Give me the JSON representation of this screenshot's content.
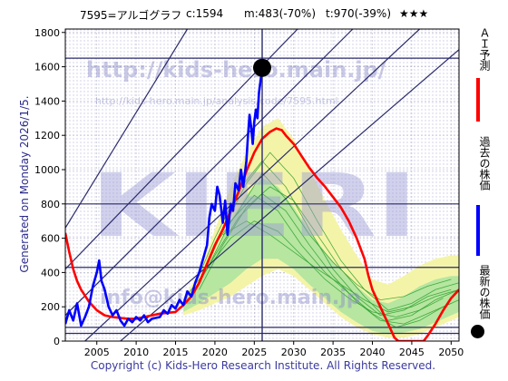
{
  "header": {
    "code": "7595=アルゴグラフ",
    "current": "c:1594",
    "min": "m:483(-70%)",
    "target": "t:970(-39%)",
    "stars": "★★★"
  },
  "side_label": "Generated on Monday 2026/1/5.",
  "copyright": "Copyright (c) Kids-Hero Research Institute. All Rights Reserved.",
  "watermarks": {
    "url_big": "http://kids-hero.main.jp/",
    "url_small": "http://kids-hero.main.jp/analysis/code/7595.html",
    "brand": "KIERI",
    "email": "info@kids-hero.main.jp"
  },
  "legend": {
    "ai": "ＡＩ予測",
    "past": "過去の株価",
    "latest": "最新の株価"
  },
  "colors": {
    "ai": "#ff0000",
    "past": "#0000ff",
    "latest": "#000000",
    "trend": "#2b2b6b",
    "band_outer": "#f4f4a8",
    "band_inner": "#b6e6a0",
    "sim": "#2c9e2c"
  },
  "chart_data": {
    "type": "line",
    "xlim": [
      2001,
      2051
    ],
    "ylim": [
      0,
      1820
    ],
    "x_ticks": [
      2005,
      2010,
      2015,
      2020,
      2025,
      2030,
      2035,
      2040,
      2045,
      2050
    ],
    "y_ticks": [
      0,
      200,
      400,
      600,
      800,
      1000,
      1200,
      1400,
      1600,
      1800
    ],
    "grid": true,
    "current_point": {
      "x": 2026,
      "y": 1594
    },
    "current_vline_x": 2026,
    "horizontal_levels": [
      1650,
      800,
      430,
      80,
      45
    ],
    "series": [
      {
        "key": "past",
        "points": [
          [
            2001,
            100
          ],
          [
            2001.5,
            180
          ],
          [
            2002,
            120
          ],
          [
            2002.5,
            220
          ],
          [
            2003,
            90
          ],
          [
            2003.5,
            140
          ],
          [
            2004,
            200
          ],
          [
            2004.5,
            320
          ],
          [
            2005,
            400
          ],
          [
            2005.3,
            470
          ],
          [
            2005.6,
            350
          ],
          [
            2006,
            300
          ],
          [
            2006.5,
            200
          ],
          [
            2007,
            150
          ],
          [
            2007.5,
            180
          ],
          [
            2008,
            120
          ],
          [
            2008.5,
            90
          ],
          [
            2009,
            130
          ],
          [
            2009.5,
            110
          ],
          [
            2010,
            140
          ],
          [
            2010.5,
            120
          ],
          [
            2011,
            150
          ],
          [
            2011.5,
            110
          ],
          [
            2012,
            130
          ],
          [
            2013,
            140
          ],
          [
            2013.5,
            180
          ],
          [
            2014,
            160
          ],
          [
            2014.5,
            210
          ],
          [
            2015,
            190
          ],
          [
            2015.5,
            240
          ],
          [
            2016,
            210
          ],
          [
            2016.5,
            290
          ],
          [
            2017,
            260
          ],
          [
            2017.5,
            340
          ],
          [
            2018,
            400
          ],
          [
            2018.5,
            480
          ],
          [
            2019,
            560
          ],
          [
            2019.3,
            720
          ],
          [
            2019.6,
            800
          ],
          [
            2020,
            760
          ],
          [
            2020.3,
            900
          ],
          [
            2020.6,
            850
          ],
          [
            2021,
            690
          ],
          [
            2021.3,
            820
          ],
          [
            2021.6,
            620
          ],
          [
            2022,
            800
          ],
          [
            2022.3,
            760
          ],
          [
            2022.6,
            920
          ],
          [
            2023,
            880
          ],
          [
            2023.3,
            1000
          ],
          [
            2023.6,
            900
          ],
          [
            2024,
            1050
          ],
          [
            2024.2,
            1200
          ],
          [
            2024.4,
            1320
          ],
          [
            2024.6,
            1250
          ],
          [
            2024.8,
            1150
          ],
          [
            2025,
            1280
          ],
          [
            2025.2,
            1350
          ],
          [
            2025.4,
            1300
          ],
          [
            2025.6,
            1450
          ],
          [
            2025.8,
            1520
          ],
          [
            2026,
            1594
          ]
        ]
      },
      {
        "key": "ai",
        "points": [
          [
            2001,
            630
          ],
          [
            2001.5,
            520
          ],
          [
            2002,
            420
          ],
          [
            2002.5,
            350
          ],
          [
            2003,
            300
          ],
          [
            2004,
            230
          ],
          [
            2005,
            180
          ],
          [
            2006,
            150
          ],
          [
            2007,
            140
          ],
          [
            2008,
            135
          ],
          [
            2009,
            130
          ],
          [
            2010,
            130
          ],
          [
            2011,
            140
          ],
          [
            2012,
            150
          ],
          [
            2013,
            160
          ],
          [
            2014,
            165
          ],
          [
            2015,
            170
          ],
          [
            2016,
            210
          ],
          [
            2017,
            260
          ],
          [
            2018,
            340
          ],
          [
            2019,
            450
          ],
          [
            2020,
            560
          ],
          [
            2021,
            650
          ],
          [
            2022,
            760
          ],
          [
            2023,
            870
          ],
          [
            2024,
            990
          ],
          [
            2025,
            1100
          ],
          [
            2026,
            1180
          ],
          [
            2027,
            1220
          ],
          [
            2027.8,
            1240
          ],
          [
            2028.5,
            1230
          ],
          [
            2029,
            1200
          ],
          [
            2030,
            1150
          ],
          [
            2031,
            1080
          ],
          [
            2032,
            1010
          ],
          [
            2033,
            950
          ],
          [
            2034,
            900
          ],
          [
            2035,
            840
          ],
          [
            2036,
            780
          ],
          [
            2037,
            700
          ],
          [
            2038,
            600
          ],
          [
            2039,
            480
          ],
          [
            2039.5,
            380
          ],
          [
            2040,
            300
          ],
          [
            2041,
            200
          ],
          [
            2042,
            100
          ],
          [
            2042.8,
            20
          ],
          [
            2043.3,
            0
          ],
          [
            2046.5,
            0
          ],
          [
            2047,
            30
          ],
          [
            2048,
            100
          ],
          [
            2049,
            180
          ],
          [
            2050,
            250
          ],
          [
            2051,
            300
          ]
        ]
      }
    ],
    "band_outer": {
      "x": [
        2016,
        2018,
        2020,
        2022,
        2024,
        2026,
        2028,
        2030,
        2032,
        2034,
        2036,
        2038,
        2040,
        2042,
        2044,
        2046,
        2048,
        2050,
        2051
      ],
      "upper": [
        250,
        400,
        650,
        900,
        1100,
        1250,
        1300,
        1180,
        1000,
        820,
        650,
        500,
        360,
        330,
        380,
        440,
        480,
        500,
        500
      ],
      "lower": [
        150,
        180,
        220,
        260,
        320,
        380,
        420,
        380,
        300,
        220,
        140,
        80,
        40,
        20,
        20,
        40,
        80,
        120,
        140
      ]
    },
    "band_inner": {
      "x": [
        2016,
        2018,
        2020,
        2022,
        2024,
        2026,
        2028,
        2030,
        2032,
        2034,
        2036,
        2038,
        2040,
        2042,
        2044,
        2046,
        2048,
        2050,
        2051
      ],
      "upper": [
        220,
        330,
        520,
        700,
        850,
        950,
        900,
        780,
        640,
        520,
        410,
        320,
        240,
        220,
        260,
        320,
        360,
        380,
        380
      ],
      "lower": [
        170,
        220,
        280,
        340,
        420,
        480,
        480,
        420,
        330,
        250,
        170,
        110,
        60,
        40,
        50,
        70,
        110,
        150,
        170
      ]
    },
    "sim_lines": [
      [
        [
          2017,
          280
        ],
        [
          2020,
          600
        ],
        [
          2023,
          880
        ],
        [
          2026,
          1050
        ],
        [
          2029,
          900
        ],
        [
          2032,
          650
        ],
        [
          2035,
          420
        ],
        [
          2038,
          260
        ],
        [
          2041,
          150
        ],
        [
          2044,
          180
        ],
        [
          2047,
          260
        ],
        [
          2050,
          300
        ]
      ],
      [
        [
          2018,
          330
        ],
        [
          2021,
          650
        ],
        [
          2024,
          920
        ],
        [
          2027,
          1100
        ],
        [
          2030,
          950
        ],
        [
          2033,
          700
        ],
        [
          2036,
          470
        ],
        [
          2039,
          300
        ],
        [
          2042,
          180
        ],
        [
          2045,
          220
        ],
        [
          2048,
          300
        ],
        [
          2051,
          340
        ]
      ],
      [
        [
          2017,
          260
        ],
        [
          2020,
          500
        ],
        [
          2023,
          720
        ],
        [
          2026,
          860
        ],
        [
          2029,
          760
        ],
        [
          2032,
          560
        ],
        [
          2035,
          380
        ],
        [
          2038,
          230
        ],
        [
          2041,
          120
        ],
        [
          2044,
          100
        ],
        [
          2047,
          160
        ],
        [
          2050,
          220
        ]
      ],
      [
        [
          2018,
          300
        ],
        [
          2021,
          560
        ],
        [
          2024,
          780
        ],
        [
          2027,
          900
        ],
        [
          2030,
          820
        ],
        [
          2033,
          620
        ],
        [
          2036,
          420
        ],
        [
          2039,
          260
        ],
        [
          2042,
          120
        ],
        [
          2045,
          150
        ],
        [
          2048,
          240
        ],
        [
          2051,
          300
        ]
      ],
      [
        [
          2019,
          420
        ],
        [
          2022,
          700
        ],
        [
          2025,
          850
        ],
        [
          2028,
          760
        ],
        [
          2031,
          560
        ],
        [
          2034,
          400
        ],
        [
          2037,
          280
        ],
        [
          2040,
          160
        ],
        [
          2043,
          80
        ],
        [
          2046,
          120
        ],
        [
          2049,
          200
        ],
        [
          2051,
          240
        ]
      ],
      [
        [
          2016,
          240
        ],
        [
          2019,
          420
        ],
        [
          2022,
          600
        ],
        [
          2025,
          700
        ],
        [
          2028,
          640
        ],
        [
          2031,
          500
        ],
        [
          2034,
          360
        ],
        [
          2037,
          250
        ],
        [
          2040,
          170
        ],
        [
          2043,
          140
        ],
        [
          2046,
          180
        ],
        [
          2049,
          250
        ]
      ],
      [
        [
          2020,
          560
        ],
        [
          2023,
          760
        ],
        [
          2026,
          980
        ],
        [
          2029,
          830
        ],
        [
          2032,
          620
        ],
        [
          2035,
          460
        ],
        [
          2038,
          330
        ],
        [
          2041,
          240
        ],
        [
          2044,
          260
        ],
        [
          2047,
          320
        ],
        [
          2050,
          360
        ]
      ],
      [
        [
          2021,
          620
        ],
        [
          2024,
          700
        ],
        [
          2027,
          620
        ],
        [
          2030,
          520
        ],
        [
          2033,
          420
        ],
        [
          2036,
          330
        ],
        [
          2039,
          240
        ],
        [
          2042,
          170
        ],
        [
          2045,
          200
        ],
        [
          2048,
          260
        ],
        [
          2051,
          300
        ]
      ]
    ],
    "trend_lines": [
      [
        [
          2001,
          660
        ],
        [
          2016.5,
          1820
        ]
      ],
      [
        [
          2001,
          420
        ],
        [
          2030.5,
          1820
        ]
      ],
      [
        [
          2001,
          150
        ],
        [
          2037.5,
          1820
        ]
      ],
      [
        [
          2003.5,
          0
        ],
        [
          2046,
          1820
        ]
      ],
      [
        [
          2008,
          0
        ],
        [
          2051,
          1700
        ]
      ]
    ]
  }
}
